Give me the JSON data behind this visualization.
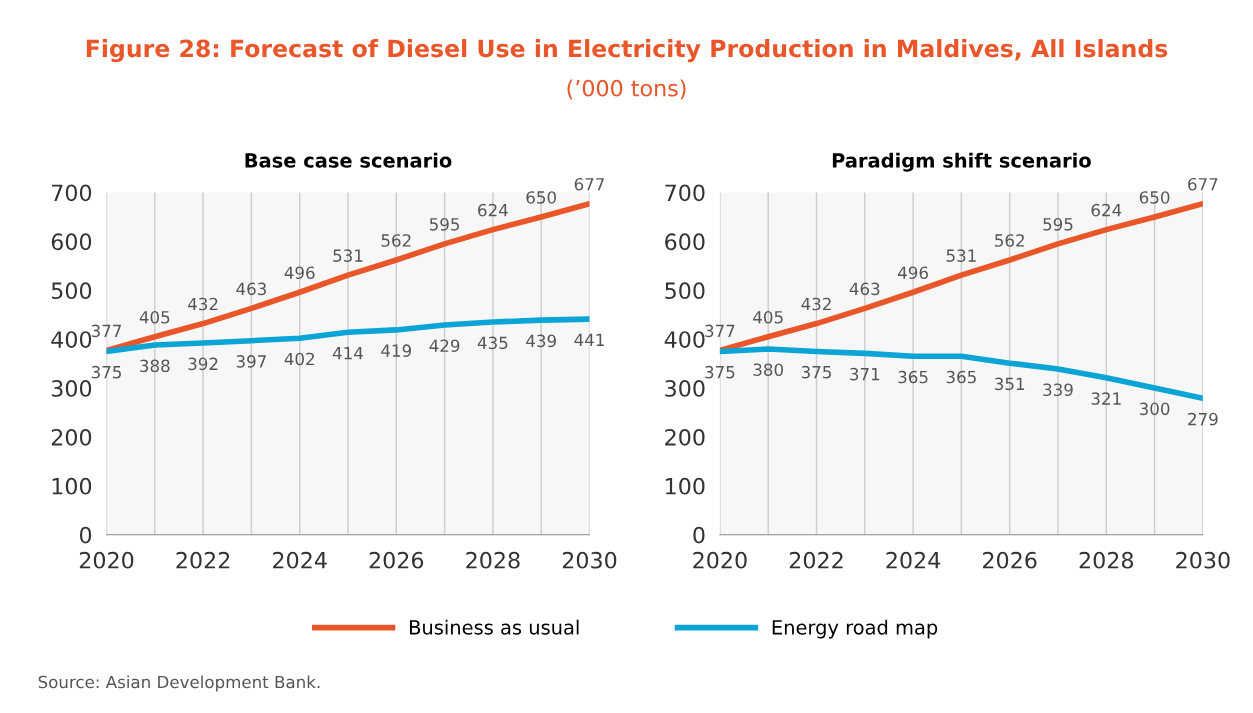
{
  "chart_data": [
    {
      "type": "line",
      "title": "Base case scenario",
      "annotations": [
        "Figure 28: Forecast of Diesel Use in Electricity Production in Maldives, All Islands",
        "(’000 tons)",
        "Source: Asian Development Bank."
      ],
      "x": [
        2020,
        2021,
        2022,
        2023,
        2024,
        2025,
        2026,
        2027,
        2028,
        2029,
        2030
      ],
      "series": [
        {
          "name": "Business as usual",
          "color": "#e8562a",
          "values": [
            377,
            405,
            432,
            463,
            496,
            531,
            562,
            595,
            624,
            650,
            677
          ]
        },
        {
          "name": "Energy road map",
          "color": "#0aa5d6",
          "values": [
            375,
            388,
            392,
            397,
            402,
            414,
            419,
            429,
            435,
            439,
            441
          ]
        }
      ],
      "xlim": [
        2020,
        2030
      ],
      "xticks": [
        2020,
        {
          "value": 2021,
          "label": null
        },
        2022,
        {
          "value": 2023,
          "label": null
        },
        2024,
        {
          "value": 2025,
          "label": null
        },
        2026,
        {
          "value": 2027,
          "label": null
        },
        2028,
        {
          "value": 2029,
          "label": null
        },
        2030
      ],
      "ylim": [
        0,
        700
      ],
      "yticks": [
        0,
        100,
        200,
        300,
        400,
        500,
        600,
        700
      ],
      "grid": "x",
      "data_labels": true,
      "legend": "bottom",
      "marker": "none",
      "line_style": "solid"
    },
    {
      "type": "line",
      "title": "Paradigm shift scenario",
      "x": [
        2020,
        2021,
        2022,
        2023,
        2024,
        2025,
        2026,
        2027,
        2028,
        2029,
        2030
      ],
      "series": [
        {
          "color": "#e8562a",
          "values": [
            377,
            405,
            432,
            463,
            496,
            531,
            562,
            595,
            624,
            650,
            677
          ]
        },
        {
          "color": "#0aa5d6",
          "values": [
            375,
            380,
            375,
            371,
            365,
            365,
            351,
            339,
            321,
            300,
            279
          ]
        }
      ],
      "xlim": [
        2020,
        2030
      ],
      "xticks": [
        2020,
        {
          "value": 2021,
          "label": null
        },
        2022,
        {
          "value": 2023,
          "label": null
        },
        2024,
        {
          "value": 2025,
          "label": null
        },
        2026,
        {
          "value": 2027,
          "label": null
        },
        2028,
        {
          "value": 2029,
          "label": null
        },
        2030
      ],
      "ylim": [
        0,
        700
      ],
      "yticks": [
        0,
        100,
        200,
        300,
        400,
        500,
        600,
        700
      ],
      "grid": "x",
      "data_labels": true,
      "marker": "none",
      "line_style": "solid"
    }
  ]
}
